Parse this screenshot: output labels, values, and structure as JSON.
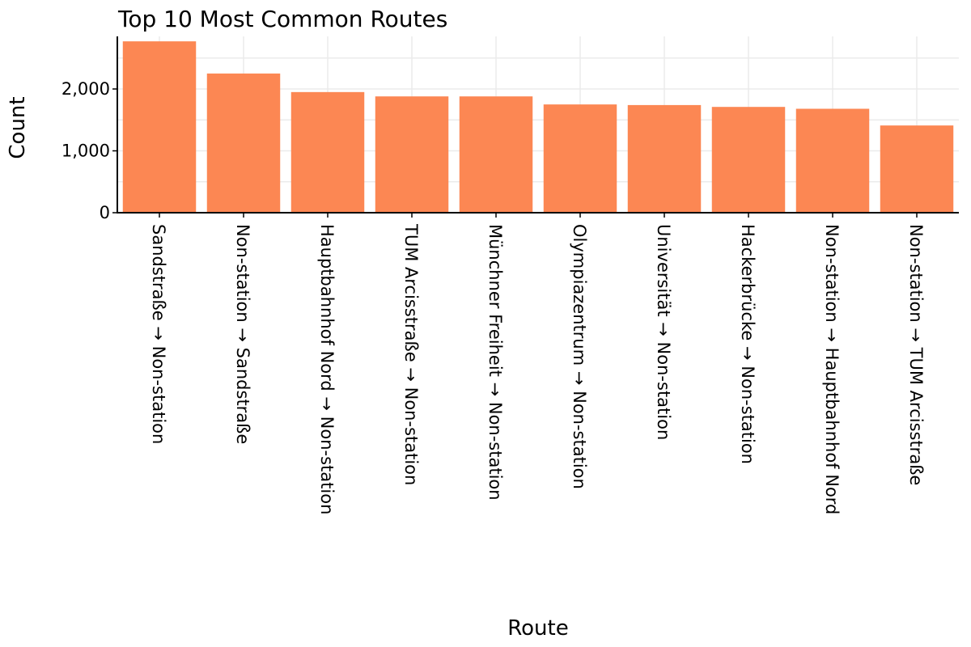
{
  "chart_data": {
    "type": "bar",
    "title": "Top 10 Most Common Routes",
    "xlabel": "Route",
    "ylabel": "Count",
    "categories": [
      "Sandstraße → Non-station",
      "Non-station → Sandstraße",
      "Hauptbahnhof Nord → Non-station",
      "TUM Arcisstraße → Non-station",
      "Münchner Freiheit → Non-station",
      "Olympiazentrum → Non-station",
      "Universität → Non-station",
      "Hackerbrücke → Non-station",
      "Non-station → Hauptbahnhof Nord",
      "Non-station → TUM Arcisstraße"
    ],
    "values": [
      2770,
      2250,
      1950,
      1880,
      1880,
      1750,
      1740,
      1710,
      1680,
      1410
    ],
    "yticks": [
      0,
      1000,
      2000
    ],
    "ytick_labels": [
      "0",
      "1,000",
      "2,000"
    ],
    "ylim": [
      0,
      2850
    ],
    "grid": true,
    "bar_color": "#fc8753"
  }
}
